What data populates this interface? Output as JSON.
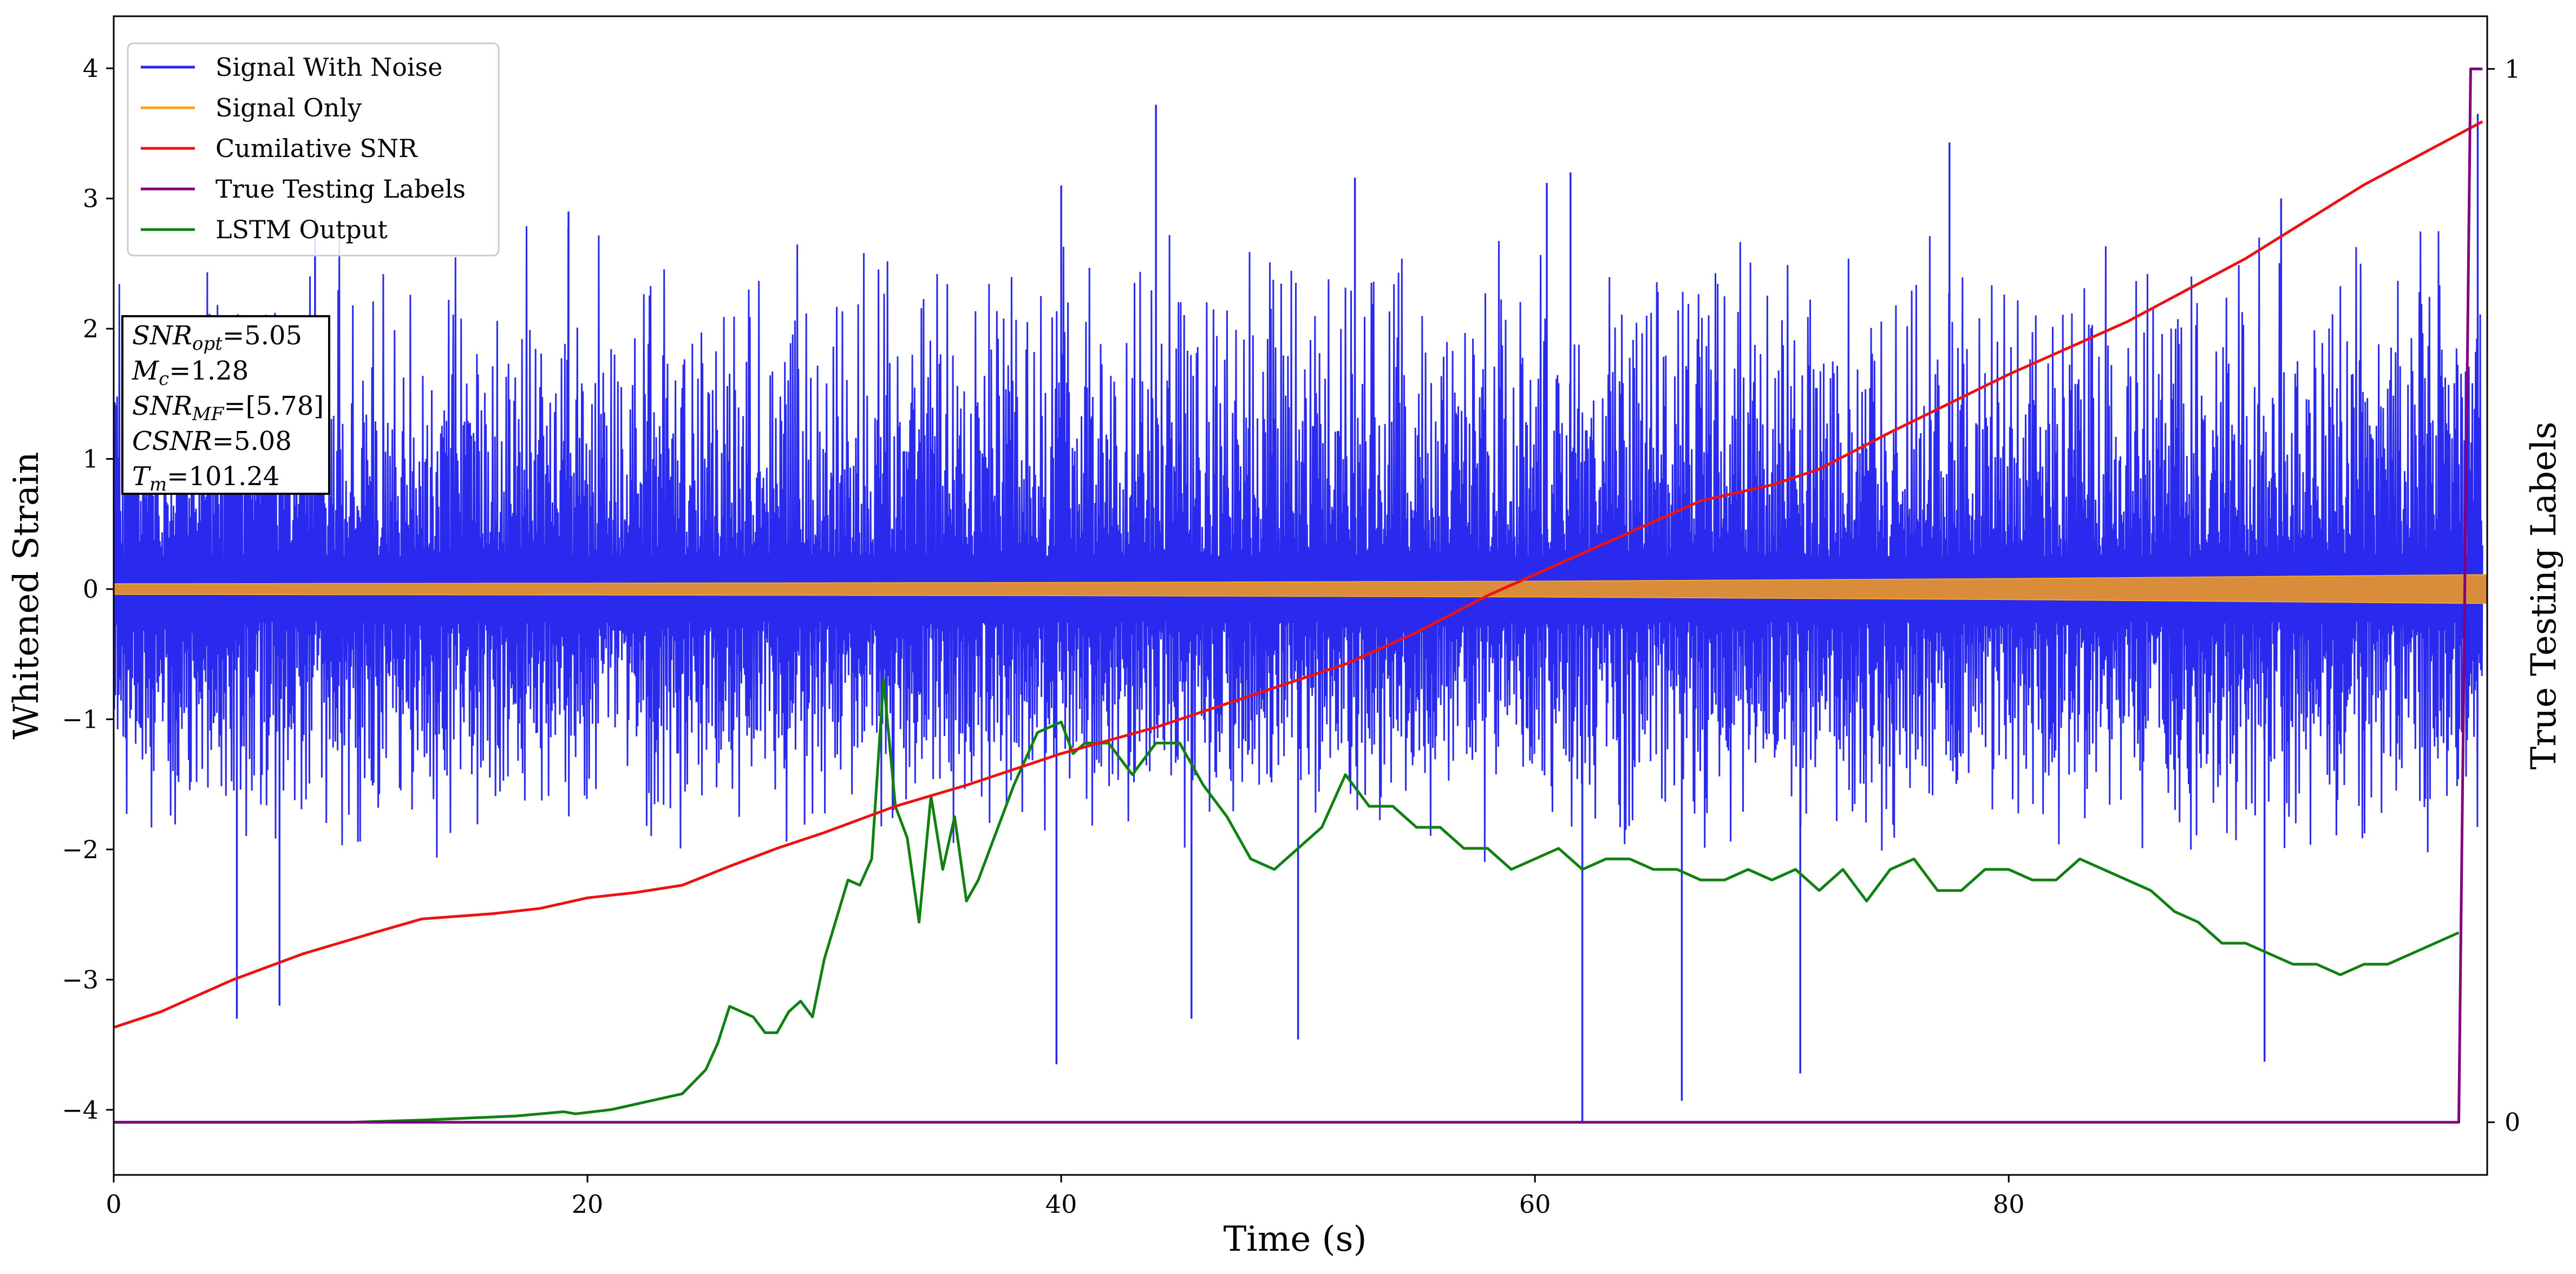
{
  "chart_data": {
    "type": "line",
    "xlabel": "Time (s)",
    "ylabel": "Whitened Strain",
    "y2label": "True Testing Labels",
    "xlim": [
      0,
      100.2
    ],
    "ylim": [
      -4.5,
      4.4
    ],
    "y2lim": [
      -0.05,
      1.05
    ],
    "x_ticks": [
      0,
      20,
      40,
      60,
      80
    ],
    "y_ticks": [
      -4,
      -3,
      -2,
      -1,
      0,
      1,
      2,
      3,
      4
    ],
    "y2_ticks": [
      0,
      1
    ],
    "legend_position": "top-left",
    "series": [
      {
        "name": "Signal With Noise",
        "color": "#2a2aee",
        "axis": "left",
        "kind": "noise",
        "typical_range": [
          -1.8,
          2.4
        ],
        "peaks": [
          {
            "x": 8.5,
            "y": 2.85
          },
          {
            "x": 19.2,
            "y": 2.9
          },
          {
            "x": 44.0,
            "y": 3.72
          },
          {
            "x": 40.0,
            "y": 3.1
          },
          {
            "x": 52.4,
            "y": 3.16
          },
          {
            "x": 60.5,
            "y": 3.12
          },
          {
            "x": 61.5,
            "y": 3.2
          },
          {
            "x": 77.5,
            "y": 3.43
          },
          {
            "x": 91.5,
            "y": 3.0
          },
          {
            "x": 99.8,
            "y": 3.65
          },
          {
            "x": 62.0,
            "y": -4.1
          },
          {
            "x": 39.8,
            "y": -3.65
          },
          {
            "x": 66.2,
            "y": -3.93
          },
          {
            "x": 71.2,
            "y": -3.72
          },
          {
            "x": 90.8,
            "y": -3.63
          },
          {
            "x": 5.2,
            "y": -3.3
          },
          {
            "x": 7.0,
            "y": -3.2
          },
          {
            "x": 50.0,
            "y": -3.46
          },
          {
            "x": 45.5,
            "y": -3.3
          }
        ]
      },
      {
        "name": "Signal Only",
        "color": "#f5a623",
        "axis": "left",
        "kind": "band",
        "amplitude_x": [
          0,
          20,
          40,
          60,
          80,
          100
        ],
        "amplitude": [
          0.04,
          0.045,
          0.05,
          0.06,
          0.08,
          0.11
        ]
      },
      {
        "name": "Cumilative SNR",
        "color": "#ee1111",
        "axis": "right",
        "x": [
          0,
          2,
          5,
          8,
          11,
          13,
          16,
          18,
          20,
          22,
          24,
          26,
          28,
          30,
          33,
          36,
          40,
          44,
          48,
          52,
          55,
          58,
          61,
          64,
          67,
          70,
          72,
          75,
          80,
          85,
          90,
          95,
          100
        ],
        "y": [
          0.09,
          0.105,
          0.135,
          0.16,
          0.18,
          0.193,
          0.198,
          0.203,
          0.213,
          0.218,
          0.225,
          0.243,
          0.26,
          0.275,
          0.3,
          0.32,
          0.35,
          0.375,
          0.405,
          0.435,
          0.465,
          0.5,
          0.53,
          0.56,
          0.59,
          0.605,
          0.62,
          0.655,
          0.71,
          0.76,
          0.82,
          0.89,
          0.95
        ]
      },
      {
        "name": "True Testing Labels",
        "color": "#800080",
        "axis": "right",
        "x": [
          0,
          99.0,
          99.5,
          100.0
        ],
        "y": [
          0,
          0,
          1.0,
          1.0
        ]
      },
      {
        "name": "LSTM Output",
        "color": "#108010",
        "axis": "right",
        "x": [
          0,
          10,
          13,
          17,
          19,
          19.5,
          21,
          22,
          23,
          24,
          25,
          25.5,
          26,
          27,
          27.5,
          28,
          28.5,
          29,
          29.5,
          30,
          31,
          31.5,
          32,
          32.5,
          33,
          33.5,
          34,
          34.5,
          35,
          35.5,
          36,
          36.5,
          37,
          38,
          39,
          40,
          40.5,
          41,
          42,
          43,
          44,
          45,
          46,
          47,
          48,
          49,
          50,
          51,
          52,
          53,
          54,
          55,
          56,
          57,
          58,
          59,
          60,
          61,
          62,
          63,
          64,
          65,
          66,
          67,
          68,
          69,
          70,
          71,
          72,
          73,
          74,
          75,
          76,
          77,
          78,
          79,
          80,
          81,
          82,
          83,
          84,
          85,
          86,
          87,
          88,
          89,
          90,
          91,
          92,
          93,
          94,
          95,
          96,
          97,
          98,
          99
        ],
        "y": [
          0,
          0,
          0.002,
          0.006,
          0.01,
          0.008,
          0.012,
          0.017,
          0.022,
          0.027,
          0.05,
          0.075,
          0.11,
          0.1,
          0.085,
          0.085,
          0.105,
          0.115,
          0.1,
          0.155,
          0.23,
          0.225,
          0.25,
          0.42,
          0.3,
          0.27,
          0.19,
          0.31,
          0.24,
          0.29,
          0.21,
          0.23,
          0.26,
          0.32,
          0.37,
          0.38,
          0.35,
          0.36,
          0.36,
          0.33,
          0.36,
          0.36,
          0.32,
          0.29,
          0.25,
          0.24,
          0.26,
          0.28,
          0.33,
          0.3,
          0.3,
          0.28,
          0.28,
          0.26,
          0.26,
          0.24,
          0.25,
          0.26,
          0.24,
          0.25,
          0.25,
          0.24,
          0.24,
          0.23,
          0.23,
          0.24,
          0.23,
          0.24,
          0.22,
          0.24,
          0.21,
          0.24,
          0.25,
          0.22,
          0.22,
          0.24,
          0.24,
          0.23,
          0.23,
          0.25,
          0.24,
          0.23,
          0.22,
          0.2,
          0.19,
          0.17,
          0.17,
          0.16,
          0.15,
          0.15,
          0.14,
          0.15,
          0.15,
          0.16,
          0.17,
          0.18
        ]
      }
    ],
    "annotation": {
      "lines": [
        {
          "var": "SNR",
          "sub": "opt",
          "value": "=5.05"
        },
        {
          "var": "M",
          "sub": "c",
          "value": "=1.28"
        },
        {
          "var": "SNR",
          "sub": "MF",
          "value": "=[5.78]"
        },
        {
          "var": "CSNR",
          "sub": "",
          "value": "=5.08"
        },
        {
          "var": "T",
          "sub": "m",
          "value": "=101.24"
        }
      ]
    }
  }
}
